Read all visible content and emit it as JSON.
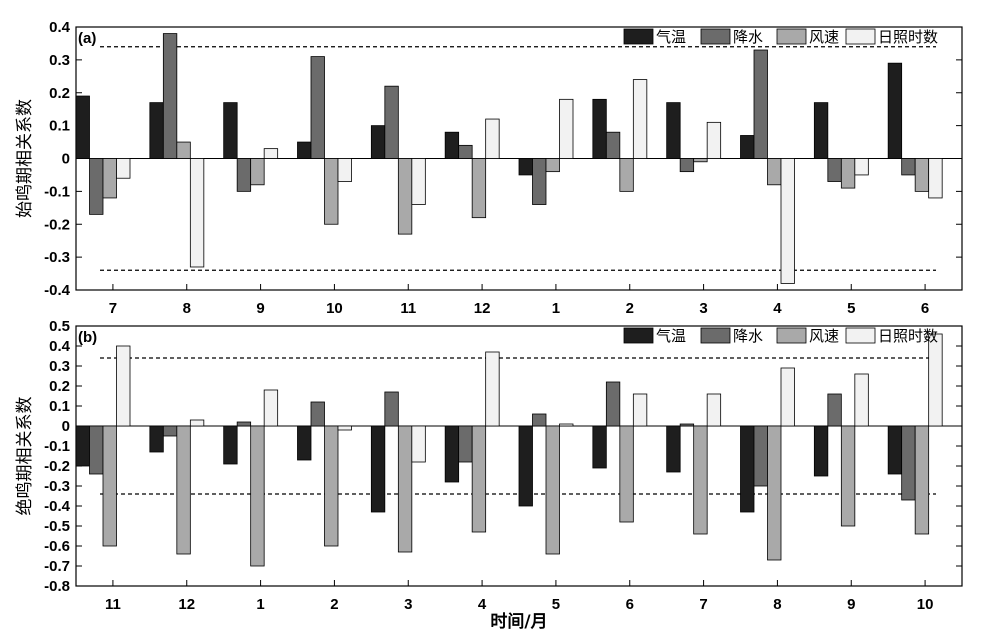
{
  "colors": [
    "#1e1e1e",
    "#6b6b6b",
    "#a9a9a9",
    "#f2f2f2"
  ],
  "xlabel": "时间/月",
  "chart_data": [
    {
      "type": "bar",
      "panel_label": "(a)",
      "ylabel": "始鸣期相关系数",
      "ylim": [
        -0.4,
        0.4
      ],
      "yticks": [
        "-0.4",
        "-0.3",
        "-0.2",
        "-0.1",
        "0",
        "0.1",
        "0.2",
        "0.3",
        "0.4"
      ],
      "categories": [
        "7",
        "8",
        "9",
        "10",
        "11",
        "12",
        "1",
        "2",
        "3",
        "4",
        "5",
        "6"
      ],
      "threshold": 0.34,
      "legend_placement": "top-right",
      "series": [
        {
          "name": "气温",
          "values": [
            0.19,
            0.17,
            0.17,
            0.05,
            0.1,
            0.08,
            -0.05,
            0.18,
            0.17,
            0.07,
            0.17,
            0.29
          ]
        },
        {
          "name": "降水",
          "values": [
            -0.17,
            0.38,
            -0.1,
            0.31,
            0.22,
            0.04,
            -0.14,
            0.08,
            -0.04,
            0.33,
            -0.07,
            -0.05
          ]
        },
        {
          "name": "风速",
          "values": [
            -0.12,
            0.05,
            -0.08,
            -0.2,
            -0.23,
            -0.18,
            -0.04,
            -0.1,
            -0.01,
            -0.08,
            -0.09,
            -0.1
          ]
        },
        {
          "name": "日照时数",
          "values": [
            -0.06,
            -0.33,
            0.03,
            -0.07,
            -0.14,
            0.12,
            0.18,
            0.24,
            0.11,
            -0.38,
            -0.05,
            -0.12
          ]
        }
      ]
    },
    {
      "type": "bar",
      "panel_label": "(b)",
      "ylabel": "绝鸣期相关系数",
      "ylim": [
        -0.8,
        0.5
      ],
      "yticks": [
        "-0.8",
        "-0.7",
        "-0.6",
        "-0.5",
        "-0.4",
        "-0.3",
        "-0.2",
        "-0.1",
        "0",
        "0.1",
        "0.2",
        "0.3",
        "0.4",
        "0.5"
      ],
      "categories": [
        "11",
        "12",
        "1",
        "2",
        "3",
        "4",
        "5",
        "6",
        "7",
        "8",
        "9",
        "10"
      ],
      "threshold": 0.34,
      "legend_placement": "top-right",
      "series": [
        {
          "name": "气温",
          "values": [
            -0.2,
            -0.13,
            -0.19,
            -0.17,
            -0.43,
            -0.28,
            -0.4,
            -0.21,
            -0.23,
            -0.43,
            -0.25,
            -0.24
          ]
        },
        {
          "name": "降水",
          "values": [
            -0.24,
            -0.05,
            0.02,
            0.12,
            0.17,
            -0.18,
            0.06,
            0.22,
            0.01,
            -0.3,
            0.16,
            -0.37
          ]
        },
        {
          "name": "风速",
          "values": [
            -0.6,
            -0.64,
            -0.7,
            -0.6,
            -0.63,
            -0.53,
            -0.64,
            -0.48,
            -0.54,
            -0.67,
            -0.5,
            -0.54
          ]
        },
        {
          "name": "日照时数",
          "values": [
            0.4,
            0.03,
            0.18,
            -0.02,
            -0.18,
            0.37,
            0.01,
            0.16,
            0.16,
            0.29,
            0.26,
            0.46
          ]
        }
      ]
    }
  ]
}
